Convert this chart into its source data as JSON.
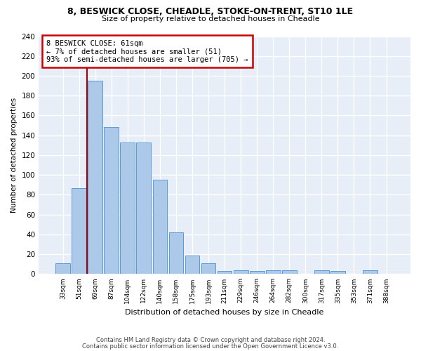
{
  "title1": "8, BESWICK CLOSE, CHEADLE, STOKE-ON-TRENT, ST10 1LE",
  "title2": "Size of property relative to detached houses in Cheadle",
  "xlabel": "Distribution of detached houses by size in Cheadle",
  "ylabel": "Number of detached properties",
  "bar_labels": [
    "33sqm",
    "51sqm",
    "69sqm",
    "87sqm",
    "104sqm",
    "122sqm",
    "140sqm",
    "158sqm",
    "175sqm",
    "193sqm",
    "211sqm",
    "229sqm",
    "246sqm",
    "264sqm",
    "282sqm",
    "300sqm",
    "317sqm",
    "335sqm",
    "353sqm",
    "371sqm",
    "388sqm"
  ],
  "bar_values": [
    11,
    87,
    195,
    148,
    133,
    133,
    95,
    42,
    19,
    11,
    3,
    4,
    3,
    4,
    4,
    0,
    4,
    3,
    0,
    4,
    0
  ],
  "bar_color": "#adc9ea",
  "bar_edge_color": "#5b9bd5",
  "background_color": "#e8eef8",
  "grid_color": "#ffffff",
  "vline_x": 1.5,
  "vline_color": "#aa0000",
  "annotation_text": "8 BESWICK CLOSE: 61sqm\n← 7% of detached houses are smaller (51)\n93% of semi-detached houses are larger (705) →",
  "annotation_box_color": "#ffffff",
  "annotation_box_edge": "#cc0000",
  "footer1": "Contains HM Land Registry data © Crown copyright and database right 2024.",
  "footer2": "Contains public sector information licensed under the Open Government Licence v3.0.",
  "ylim": [
    0,
    240
  ],
  "yticks": [
    0,
    20,
    40,
    60,
    80,
    100,
    120,
    140,
    160,
    180,
    200,
    220,
    240
  ]
}
